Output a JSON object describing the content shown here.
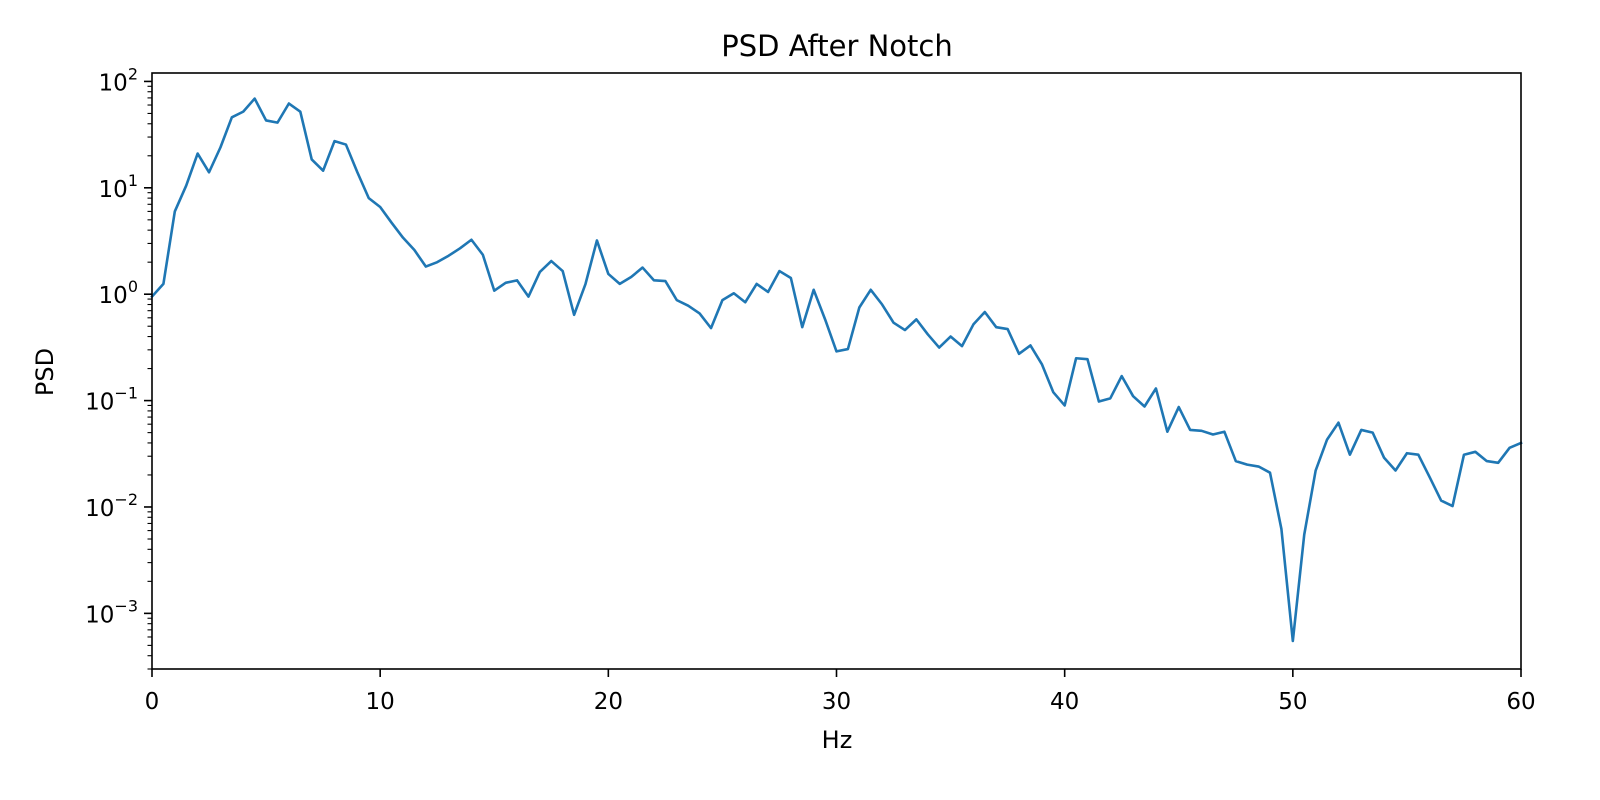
{
  "colors": {
    "line": "#1f77b4",
    "axes": "#000000",
    "background": "#ffffff"
  },
  "chart_data": {
    "type": "line",
    "title": "PSD After Notch",
    "xlabel": "Hz",
    "ylabel": "PSD",
    "xlim": [
      0,
      60
    ],
    "ylim": [
      0.0003,
      120
    ],
    "yscale": "log",
    "grid": false,
    "x_ticks": [
      {
        "value": 0,
        "label": "0"
      },
      {
        "value": 10,
        "label": "10"
      },
      {
        "value": 20,
        "label": "20"
      },
      {
        "value": 30,
        "label": "30"
      },
      {
        "value": 40,
        "label": "40"
      },
      {
        "value": 50,
        "label": "50"
      },
      {
        "value": 60,
        "label": "60"
      }
    ],
    "y_ticks": [
      {
        "value": 100,
        "base": "10",
        "exp": "2"
      },
      {
        "value": 10,
        "base": "10",
        "exp": "1"
      },
      {
        "value": 1,
        "base": "10",
        "exp": "0"
      },
      {
        "value": 0.1,
        "base": "10",
        "exp": "−1"
      },
      {
        "value": 0.01,
        "base": "10",
        "exp": "−2"
      },
      {
        "value": 0.001,
        "base": "10",
        "exp": "−3"
      }
    ],
    "series": [
      {
        "x": [
          0,
          0.5,
          1,
          1.5,
          2,
          2.5,
          3,
          3.5,
          4,
          4.5,
          5,
          5.5,
          6,
          6.5,
          7,
          7.5,
          8,
          8.5,
          9,
          9.5,
          10,
          10.5,
          11,
          11.5,
          12,
          12.5,
          13,
          13.5,
          14,
          14.5,
          15,
          15.5,
          16,
          16.5,
          17,
          17.5,
          18,
          18.5,
          19,
          19.5,
          20,
          20.5,
          21,
          21.5,
          22,
          22.5,
          23,
          23.5,
          24,
          24.5,
          25,
          25.5,
          26,
          26.5,
          27,
          27.5,
          28,
          28.5,
          29,
          29.5,
          30,
          30.5,
          31,
          31.5,
          32,
          32.5,
          33,
          33.5,
          34,
          34.5,
          35,
          35.5,
          36,
          36.5,
          37,
          37.5,
          38,
          38.5,
          39,
          39.5,
          40,
          40.5,
          41,
          41.5,
          42,
          42.5,
          43,
          43.5,
          44,
          44.5,
          45,
          45.5,
          46,
          46.5,
          47,
          47.5,
          48,
          48.5,
          49,
          49.5,
          50,
          50.5,
          51,
          51.5,
          52,
          52.5,
          53,
          53.5,
          54,
          54.5,
          55,
          55.5,
          56,
          56.5,
          57,
          57.5,
          58,
          58.5,
          59,
          59.5,
          60
        ],
        "values": [
          0.95,
          1.25,
          6.0,
          10.5,
          21.0,
          14.0,
          24.0,
          46.0,
          52.0,
          69.0,
          43.0,
          41.0,
          62.0,
          52.0,
          18.5,
          14.5,
          27.5,
          25.5,
          14.0,
          8.0,
          6.6,
          4.7,
          3.4,
          2.6,
          1.82,
          2.0,
          2.3,
          2.7,
          3.25,
          2.35,
          1.08,
          1.28,
          1.35,
          0.95,
          1.62,
          2.05,
          1.65,
          0.64,
          1.25,
          3.2,
          1.55,
          1.25,
          1.45,
          1.78,
          1.35,
          1.33,
          0.88,
          0.78,
          0.66,
          0.48,
          0.88,
          1.02,
          0.84,
          1.25,
          1.05,
          1.65,
          1.42,
          0.49,
          1.1,
          0.58,
          0.29,
          0.305,
          0.75,
          1.1,
          0.8,
          0.54,
          0.46,
          0.58,
          0.42,
          0.315,
          0.4,
          0.325,
          0.52,
          0.68,
          0.49,
          0.47,
          0.275,
          0.33,
          0.22,
          0.12,
          0.09,
          0.25,
          0.245,
          0.098,
          0.105,
          0.17,
          0.11,
          0.088,
          0.13,
          0.051,
          0.087,
          0.053,
          0.052,
          0.048,
          0.051,
          0.027,
          0.025,
          0.024,
          0.021,
          0.0062,
          0.00055,
          0.0055,
          0.022,
          0.043,
          0.062,
          0.031,
          0.053,
          0.05,
          0.029,
          0.022,
          0.032,
          0.031,
          0.019,
          0.0115,
          0.0102,
          0.031,
          0.033,
          0.027,
          0.026,
          0.036,
          0.04
        ]
      }
    ]
  }
}
